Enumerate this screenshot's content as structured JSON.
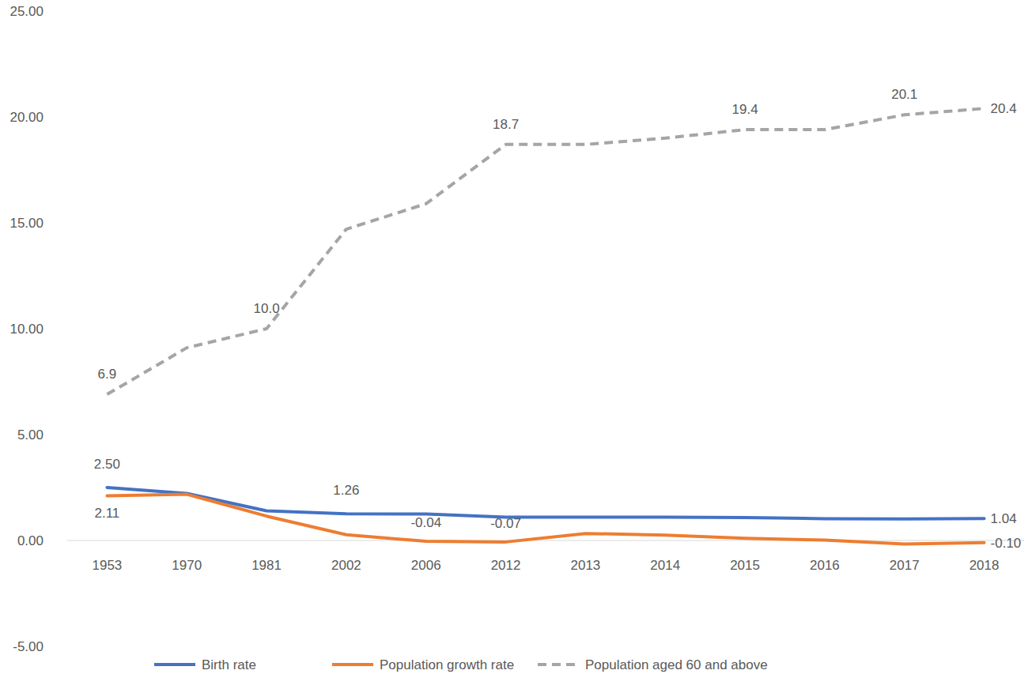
{
  "chart_data": {
    "type": "line",
    "categories": [
      "1953",
      "1970",
      "1981",
      "2002",
      "2006",
      "2012",
      "2013",
      "2014",
      "2015",
      "2016",
      "2017",
      "2018"
    ],
    "series": [
      {
        "name": "Birth rate",
        "color": "#4472c4",
        "line_style": "solid",
        "values": [
          2.5,
          2.22,
          1.4,
          1.26,
          1.25,
          1.1,
          1.1,
          1.1,
          1.08,
          1.03,
          1.02,
          1.04
        ],
        "value_labels": [
          "2.50",
          null,
          null,
          "1.26",
          null,
          null,
          null,
          null,
          null,
          null,
          null,
          "1.04"
        ]
      },
      {
        "name": "Population growth rate",
        "color": "#ed7d31",
        "line_style": "solid",
        "values": [
          2.11,
          2.18,
          1.15,
          0.27,
          -0.04,
          -0.07,
          0.33,
          0.25,
          0.1,
          0.02,
          -0.17,
          -0.1
        ],
        "value_labels": [
          "2.11",
          null,
          null,
          null,
          "-0.04",
          "-0.07",
          null,
          null,
          null,
          null,
          null,
          "-0.10"
        ]
      },
      {
        "name": "Population aged 60 and above",
        "color": "#a5a5a5",
        "line_style": "dashed",
        "values": [
          6.9,
          9.1,
          10.0,
          14.7,
          15.9,
          18.7,
          18.7,
          19.0,
          19.4,
          19.4,
          20.1,
          20.4
        ],
        "value_labels": [
          "6.9",
          null,
          "10.0",
          null,
          null,
          "18.7",
          null,
          null,
          "19.4",
          null,
          "20.1",
          "20.4"
        ]
      }
    ],
    "ylim": [
      -5,
      25
    ],
    "yticks": [
      {
        "value": -5,
        "label": "-5.00"
      },
      {
        "value": 0,
        "label": "0.00"
      },
      {
        "value": 5,
        "label": "5.00"
      },
      {
        "value": 10,
        "label": "10.00"
      },
      {
        "value": 15,
        "label": "15.00"
      },
      {
        "value": 20,
        "label": "20.00"
      },
      {
        "value": 25,
        "label": "25.00"
      }
    ],
    "grid": false,
    "legend": "bottom"
  }
}
